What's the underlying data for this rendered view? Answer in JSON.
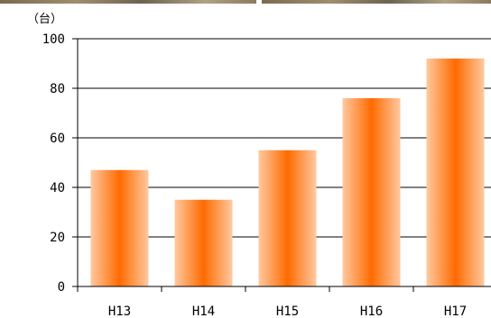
{
  "chart_data": {
    "type": "bar",
    "unit_label": "（台）",
    "categories": [
      "H13",
      "H14",
      "H15",
      "H16",
      "H17"
    ],
    "values": [
      47,
      35,
      55,
      76,
      92
    ],
    "ylim": [
      0,
      100
    ],
    "yticks": [
      0,
      20,
      40,
      60,
      80,
      100
    ],
    "grid": true,
    "legend": "none",
    "bar_gradient": {
      "edge": "#ffc9a0",
      "center": "#ff6a00"
    },
    "title": "",
    "xlabel": "",
    "ylabel": ""
  }
}
